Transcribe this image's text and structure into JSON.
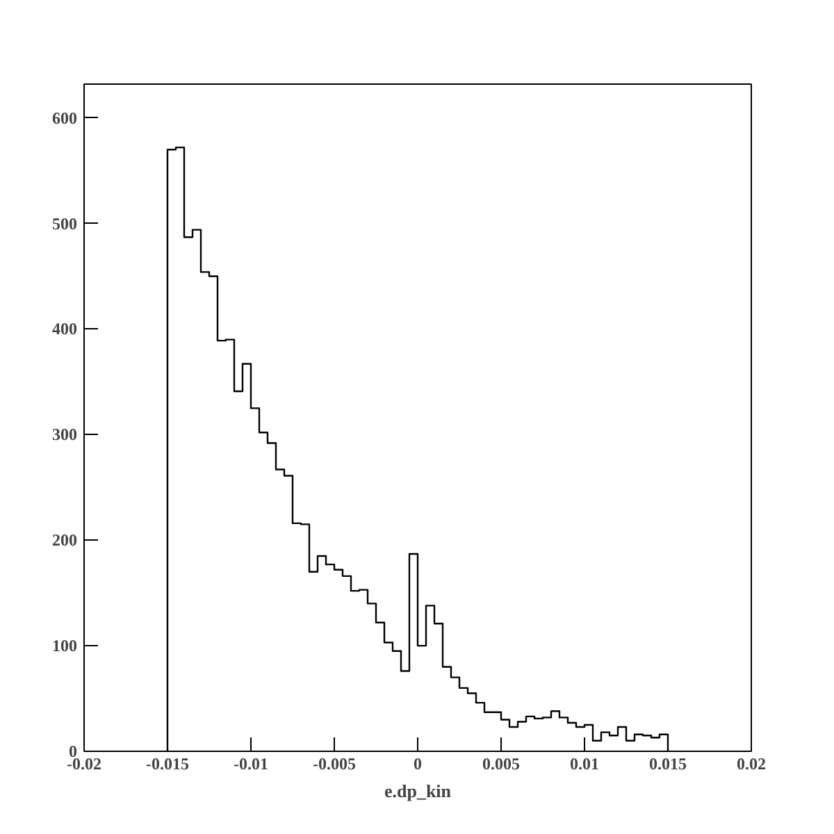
{
  "chart_data": {
    "type": "histogram",
    "xlabel": "e.dp_kin",
    "bins": [
      -0.015,
      -0.0145,
      -0.014,
      -0.0135,
      -0.013,
      -0.0125,
      -0.012,
      -0.0115,
      -0.011,
      -0.0105,
      -0.01,
      -0.0095,
      -0.009,
      -0.0085,
      -0.008,
      -0.0075,
      -0.007,
      -0.0065,
      -0.006,
      -0.0055,
      -0.005,
      -0.0045,
      -0.004,
      -0.0035,
      -0.003,
      -0.0025,
      -0.002,
      -0.0015,
      -0.001,
      -0.0005,
      0,
      0.0005,
      0.001,
      0.0015,
      0.002,
      0.0025,
      0.003,
      0.0035,
      0.004,
      0.0045,
      0.005,
      0.0055,
      0.006,
      0.0065,
      0.007,
      0.0075,
      0.008,
      0.0085,
      0.009,
      0.0095,
      0.01,
      0.0105,
      0.011,
      0.0115,
      0.012,
      0.0125,
      0.013,
      0.0135,
      0.014,
      0.0145,
      0.015
    ],
    "values": [
      570,
      572,
      487,
      494,
      454,
      450,
      389,
      390,
      341,
      367,
      325,
      302,
      292,
      267,
      261,
      216,
      215,
      170,
      185,
      177,
      172,
      166,
      152,
      153,
      140,
      122,
      103,
      95,
      76,
      187,
      100,
      138,
      121,
      80,
      70,
      60,
      55,
      46,
      37,
      37,
      30,
      23,
      28,
      33,
      31,
      32,
      38,
      32,
      27,
      23,
      25,
      10,
      18,
      15,
      23,
      10,
      16,
      15,
      13,
      16
    ],
    "color": "#000000",
    "xlim": [
      -0.02,
      0.02
    ],
    "ylim": [
      0,
      632
    ],
    "xticks": [
      -0.02,
      -0.015,
      -0.01,
      -0.005,
      0,
      0.005,
      0.01,
      0.015,
      0.02
    ],
    "yticks": [
      0,
      100,
      200,
      300,
      400,
      500,
      600
    ],
    "grid": false
  }
}
